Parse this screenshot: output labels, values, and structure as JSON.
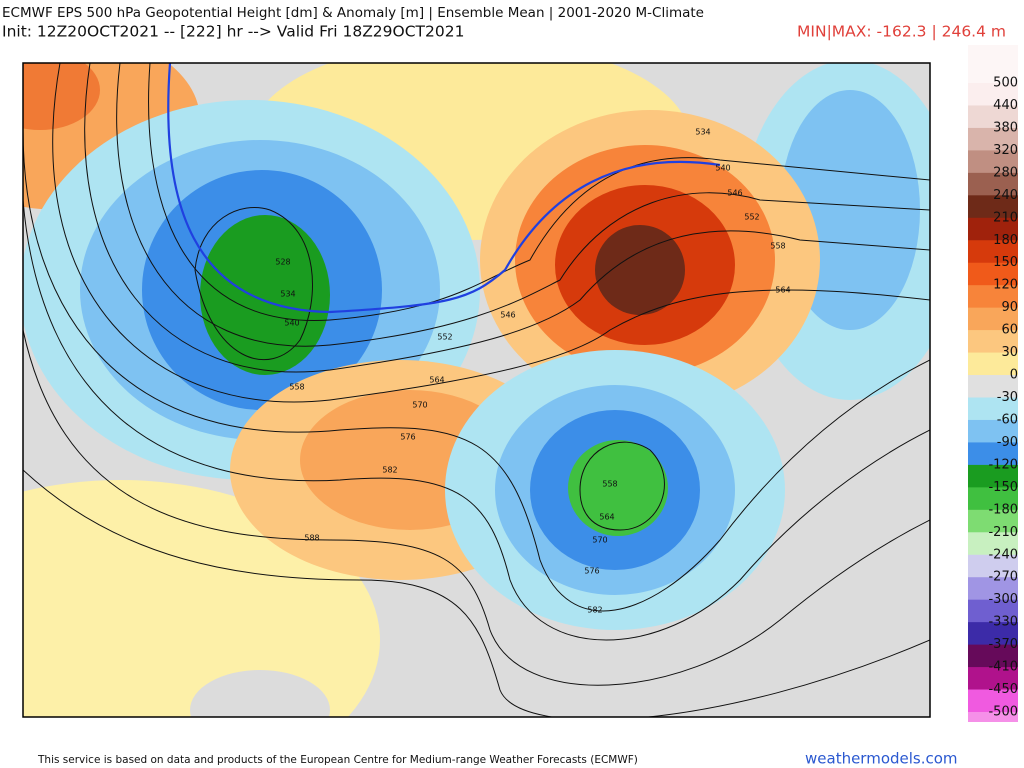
{
  "header": {
    "title": "ECMWF EPS 500 hPa Geopotential Height [dm] & Anomaly [m] | Ensemble Mean | 2001-2020 M-Climate",
    "subtitle": "Init: 12Z20OCT2021 -- [222] hr --> Valid Fri 18Z29OCT2021",
    "minmax": "MIN|MAX: -162.3 | 246.4 m"
  },
  "colorbar": {
    "labels": [
      500,
      440,
      380,
      320,
      280,
      240,
      210,
      180,
      150,
      120,
      90,
      60,
      30,
      0,
      -30,
      -60,
      -90,
      -120,
      -150,
      -180,
      -210,
      -240,
      -270,
      -300,
      -330,
      -370,
      -410,
      -450,
      -500
    ],
    "colors": [
      "#fbeeee",
      "#eed8d4",
      "#d9b4ab",
      "#c08f82",
      "#9b6050",
      "#6e2a18",
      "#a0220c",
      "#d63a0c",
      "#f05a1a",
      "#f7843a",
      "#f9a65a",
      "#fcc77f",
      "#fdea9a",
      "#e0e0e0",
      "#aee4f2",
      "#7ec2f2",
      "#3c8ee8",
      "#1a9c20",
      "#40c040",
      "#7edc72",
      "#c8f0c0",
      "#cfcdee",
      "#a095e4",
      "#6f5fd0",
      "#3c2ba8",
      "#660a5a",
      "#b0128c",
      "#f05ae0"
    ]
  },
  "contour_labels": [
    "534",
    "540",
    "546",
    "552",
    "558",
    "564",
    "528",
    "534",
    "540",
    "558",
    "546",
    "552",
    "564",
    "570",
    "576",
    "582",
    "588",
    "558",
    "564",
    "570",
    "576",
    "582"
  ],
  "footer": {
    "credit": "This service is based on data and products of the European Centre for Medium-range Weather Forecasts (ECMWF)",
    "site": "weathermodels.com"
  }
}
